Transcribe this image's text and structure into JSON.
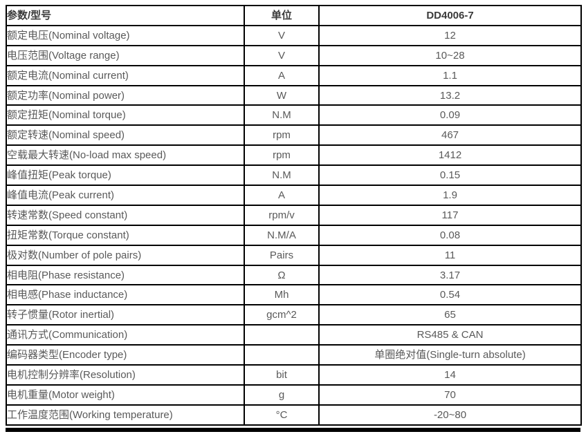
{
  "table": {
    "headers": {
      "param": "参数/型号",
      "unit": "单位",
      "model": "DD4006-7"
    },
    "rows": [
      {
        "param": "额定电压(Nominal voltage)",
        "unit": "V",
        "value": "12"
      },
      {
        "param": "电压范围(Voltage range)",
        "unit": "V",
        "value": "10~28"
      },
      {
        "param": "额定电流(Nominal current)",
        "unit": "A",
        "value": "1.1"
      },
      {
        "param": "额定功率(Nominal power)",
        "unit": "W",
        "value": "13.2"
      },
      {
        "param": "额定扭矩(Nominal torque)",
        "unit": "N.M",
        "value": "0.09"
      },
      {
        "param": "额定转速(Nominal speed)",
        "unit": "rpm",
        "value": "467"
      },
      {
        "param": "空载最大转速(No-load max speed)",
        "unit": "rpm",
        "value": "1412"
      },
      {
        "param": "峰值扭矩(Peak torque)",
        "unit": "N.M",
        "value": "0.15"
      },
      {
        "param": "峰值电流(Peak current)",
        "unit": "A",
        "value": "1.9"
      },
      {
        "param": "转速常数(Speed constant)",
        "unit": "rpm/v",
        "value": "117"
      },
      {
        "param": "扭矩常数(Torque constant)",
        "unit": "N.M/A",
        "value": "0.08"
      },
      {
        "param": "极对数(Number of pole pairs)",
        "unit": "Pairs",
        "value": "11"
      },
      {
        "param": "相电阻(Phase resistance)",
        "unit": "Ω",
        "value": "3.17"
      },
      {
        "param": "相电感(Phase inductance)",
        "unit": "Mh",
        "value": "0.54"
      },
      {
        "param": "转子惯量(Rotor inertial)",
        "unit": "gcm^2",
        "value": "65"
      },
      {
        "param": "通讯方式(Communication)",
        "unit": "",
        "value": "RS485 & CAN"
      },
      {
        "param": "编码器类型(Encoder type)",
        "unit": "",
        "value": "单圈绝对值(Single-turn absolute)"
      },
      {
        "param": "电机控制分辨率(Resolution)",
        "unit": "bit",
        "value": "14"
      },
      {
        "param": "电机重量(Motor weight)",
        "unit": "g",
        "value": "70"
      },
      {
        "param": "工作温度范围(Working temperature)",
        "unit": "°C",
        "value": "-20~80"
      }
    ]
  },
  "colors": {
    "border": "#000000",
    "header_text": "#3a3a3a",
    "body_text": "#595959",
    "background": "#ffffff",
    "bottom_bar": "#000000"
  }
}
